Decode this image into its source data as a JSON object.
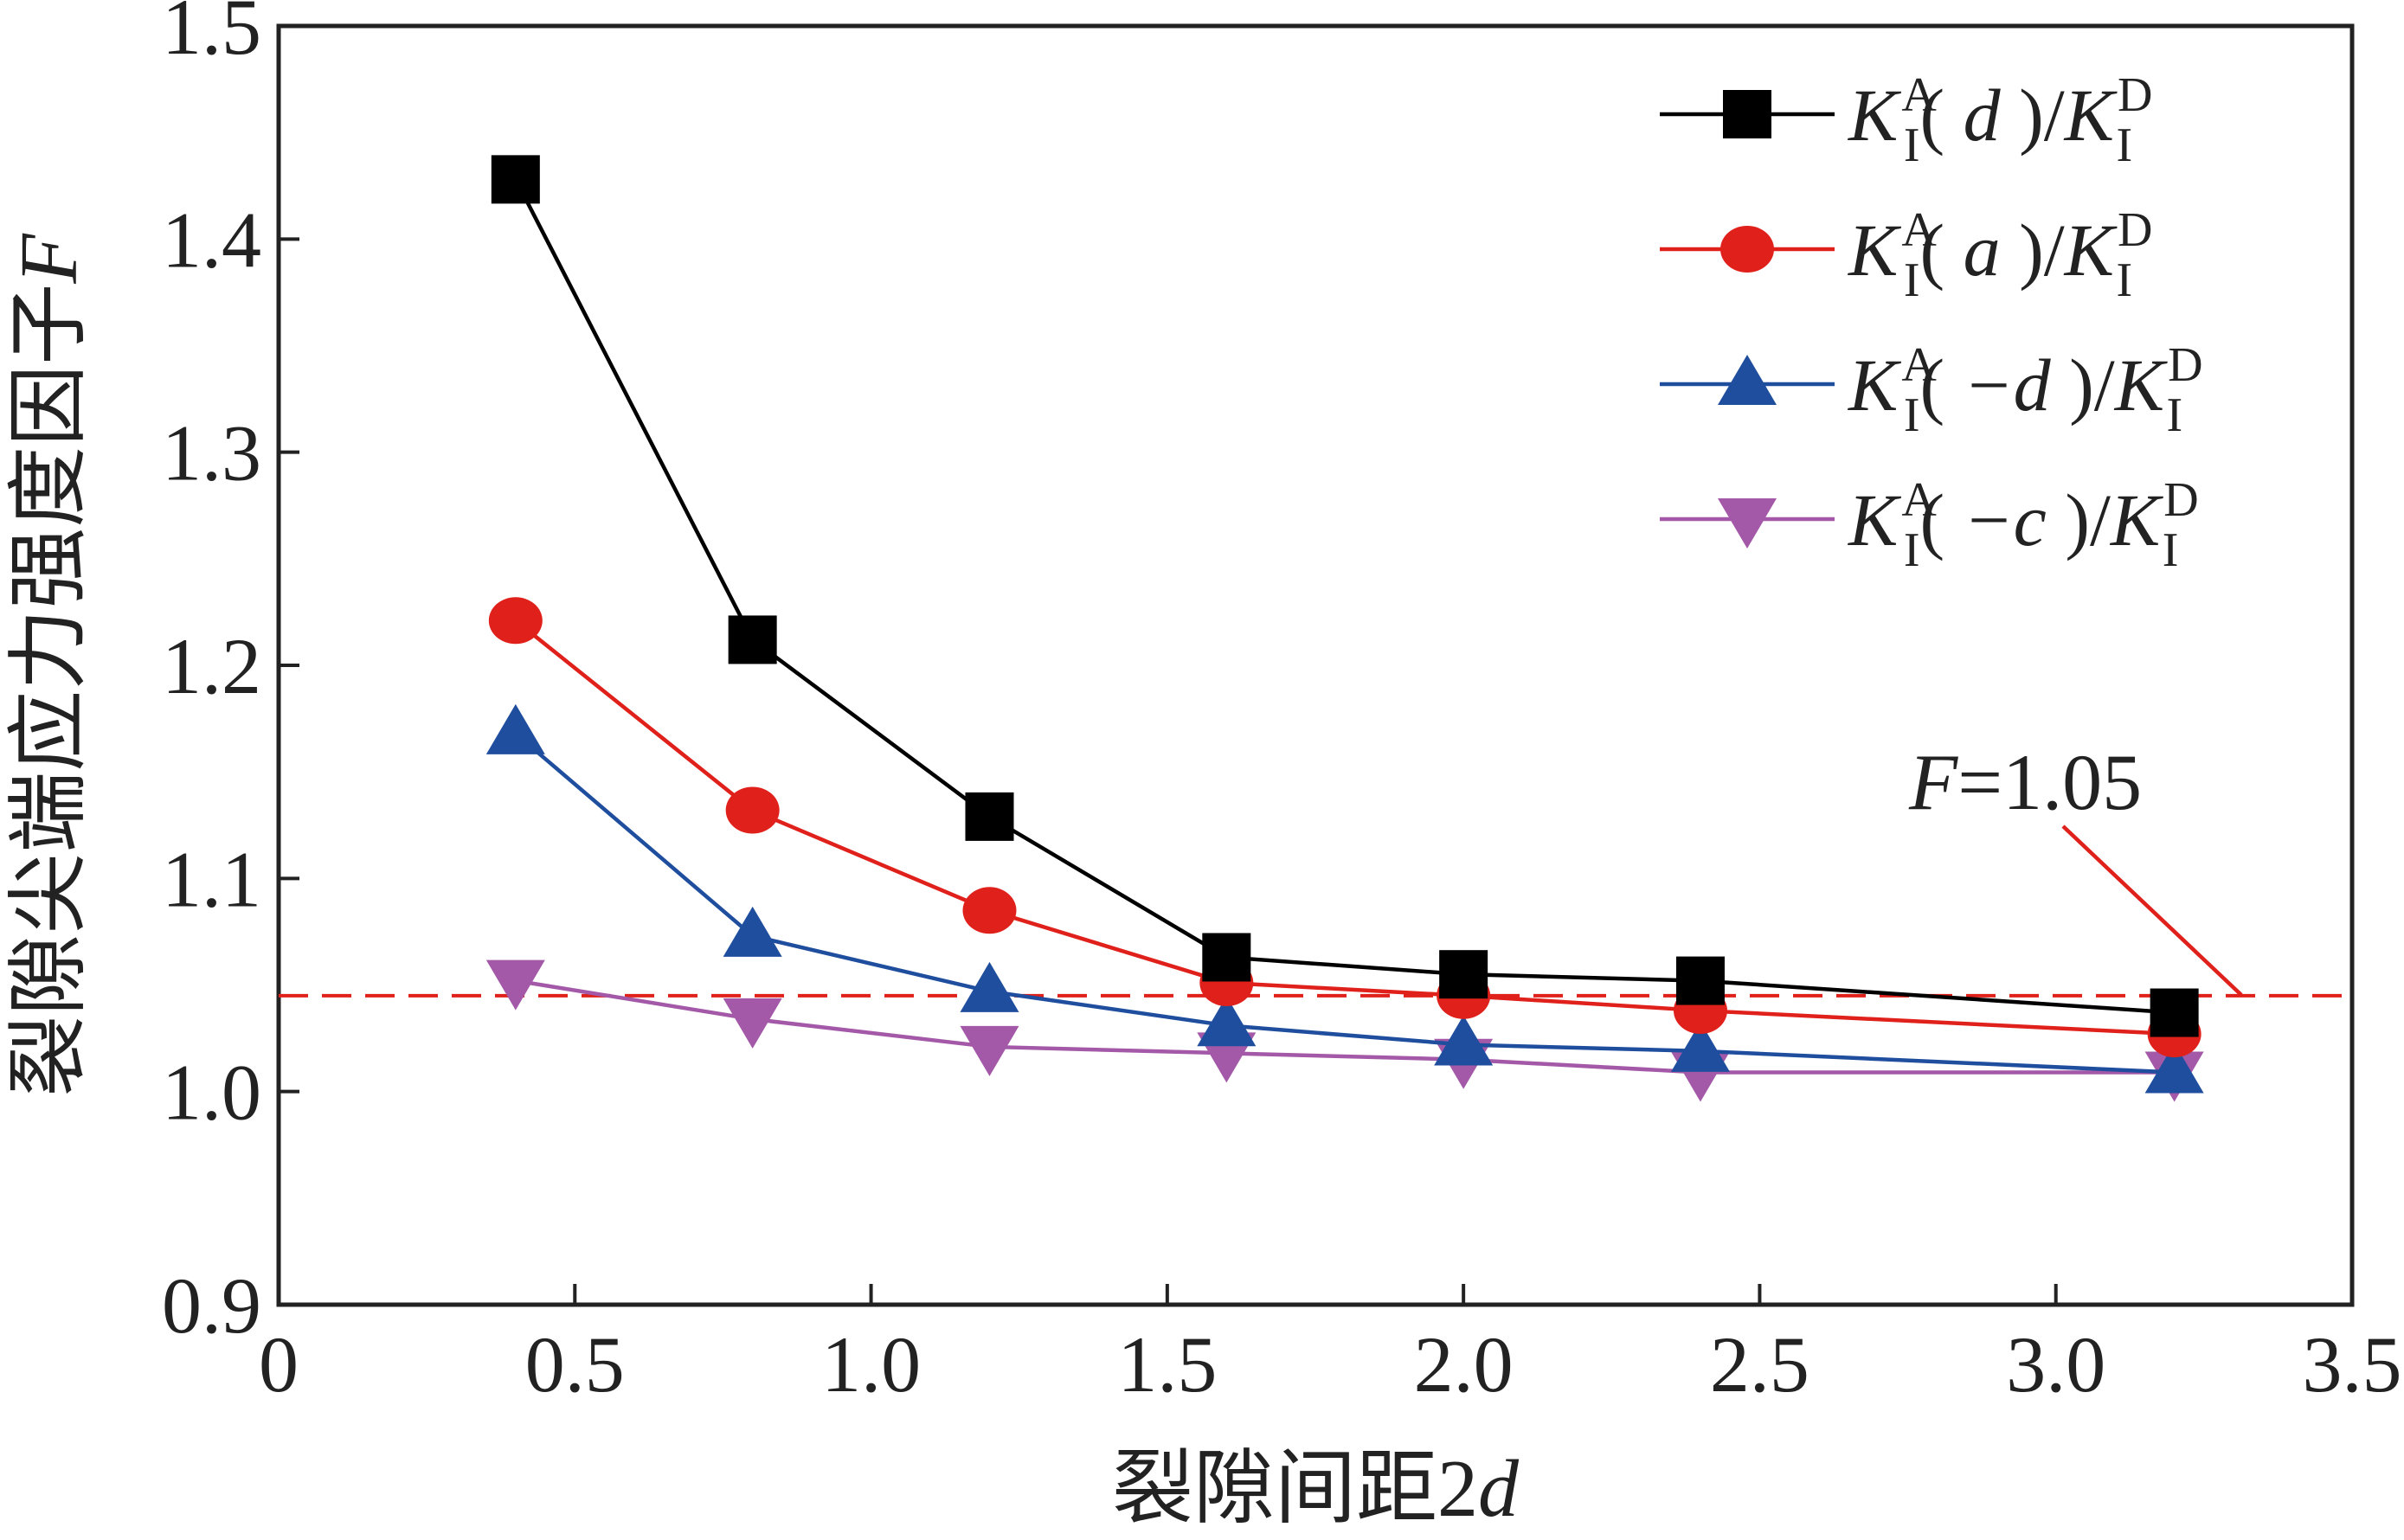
{
  "chart_data": {
    "type": "line",
    "xlabel": "裂隙间距2d",
    "ylabel": "裂隙尖端应力强度因子F",
    "xlim": [
      0,
      3.5
    ],
    "ylim": [
      0.9,
      1.5
    ],
    "xticks": [
      "0",
      "0.5",
      "1.0",
      "1.5",
      "2.0",
      "2.5",
      "3.0",
      "3.5"
    ],
    "yticks": [
      "0.9",
      "1.0",
      "1.1",
      "1.2",
      "1.3",
      "1.4",
      "1.5"
    ],
    "x": [
      0.4,
      0.8,
      1.2,
      1.6,
      2.0,
      2.4,
      3.2
    ],
    "series": [
      {
        "name": "K_I^A(d)/K_I^D",
        "label": {
          "K": "K",
          "sub": "I",
          "sup": "A",
          "arg": "d",
          "den": "K",
          "den_sub": "I",
          "den_sup": "D"
        },
        "color": "#000000",
        "marker": "square",
        "values": [
          1.428,
          1.212,
          1.129,
          1.063,
          1.055,
          1.052,
          1.037
        ]
      },
      {
        "name": "K_I^A(a)/K_I^D",
        "label": {
          "K": "K",
          "sub": "I",
          "sup": "A",
          "arg": "a",
          "den": "K",
          "den_sub": "I",
          "den_sup": "D"
        },
        "color": "#e0201b",
        "marker": "circle",
        "values": [
          1.221,
          1.132,
          1.085,
          1.051,
          1.045,
          1.038,
          1.027
        ]
      },
      {
        "name": "K_I^A(−d)/K_I^D",
        "label": {
          "K": "K",
          "sub": "I",
          "sup": "A",
          "arg": "−d",
          "den": "K",
          "den_sub": "I",
          "den_sup": "D"
        },
        "color": "#1f4e9e",
        "marker": "triangle-up",
        "values": [
          1.168,
          1.073,
          1.047,
          1.031,
          1.022,
          1.019,
          1.009
        ]
      },
      {
        "name": "K_I^A(−c)/K_I^D",
        "label": {
          "K": "K",
          "sub": "I",
          "sup": "A",
          "arg": "−c",
          "den": "K",
          "den_sub": "I",
          "den_sup": "D"
        },
        "color": "#a358a8",
        "marker": "triangle-down",
        "values": [
          1.052,
          1.034,
          1.021,
          1.018,
          1.015,
          1.009,
          1.009
        ]
      }
    ],
    "reference_line": {
      "y": 1.045,
      "color": "#e0201b",
      "style": "dashed"
    },
    "annotation": {
      "text_var": "F",
      "text_value": "=1.05",
      "color": "#e0201b"
    },
    "legend_position": "top-right",
    "grid": false
  }
}
